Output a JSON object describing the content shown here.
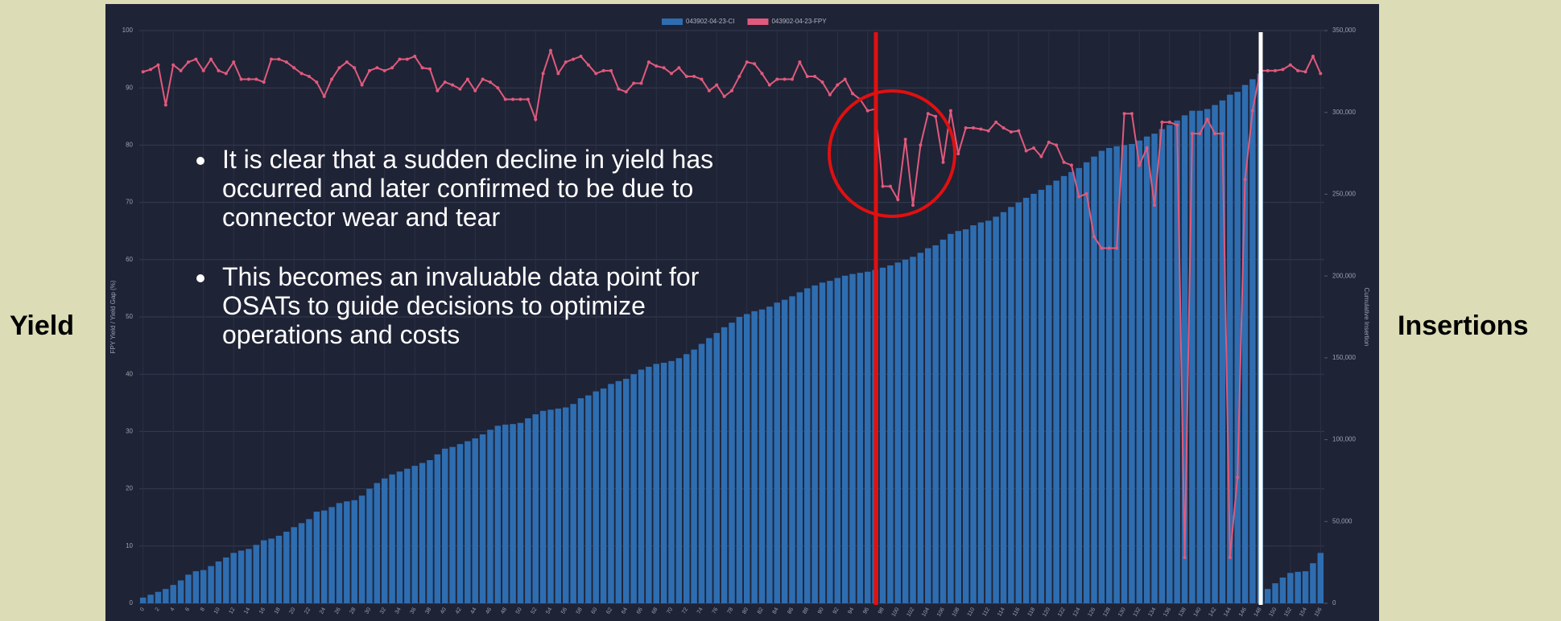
{
  "slide": {
    "left_label": "Yield",
    "right_label": "Insertions",
    "bullets": [
      "It is clear that a sudden decline in yield has occurred and later confirmed to be due to connector wear and tear",
      "This becomes an invaluable data point for OSATs to guide decisions to optimize operations and costs"
    ]
  },
  "chart_data": {
    "type": "bar",
    "ylabel": "FPY Yield / Yield Gap (%)",
    "y2label": "Cumulative Insertion",
    "categories": [
      0,
      null,
      2,
      null,
      4,
      null,
      6,
      null,
      8,
      null,
      10,
      null,
      12,
      null,
      14,
      null,
      16,
      null,
      18,
      null,
      20,
      null,
      22,
      null,
      24,
      null,
      26,
      null,
      28,
      null,
      30,
      null,
      32,
      null,
      34,
      null,
      36,
      null,
      38,
      null,
      40,
      null,
      42,
      null,
      44,
      null,
      46,
      null,
      48,
      null,
      50,
      null,
      52,
      null,
      54,
      null,
      56,
      null,
      58,
      null,
      60,
      null,
      62,
      null,
      64,
      null,
      66,
      null,
      68,
      null,
      70,
      null,
      72,
      null,
      74,
      null,
      76,
      null,
      78,
      null,
      80,
      null,
      82,
      null,
      84,
      null,
      86,
      null,
      88,
      null,
      90,
      null,
      92,
      null,
      94,
      null,
      96,
      null,
      98,
      null,
      100,
      null,
      102,
      null,
      104,
      null,
      106,
      null,
      108,
      null,
      110,
      null,
      112,
      null,
      114,
      null,
      116,
      null,
      118,
      null,
      120,
      null,
      122,
      null,
      124,
      null,
      126,
      null,
      128,
      null,
      130,
      null,
      132,
      null,
      134,
      null,
      136,
      null,
      138,
      null,
      140,
      null,
      142,
      null,
      144,
      null,
      146,
      null,
      148,
      null,
      150,
      null,
      152,
      null,
      154,
      null,
      156
    ],
    "series": [
      {
        "name": "043902-04-23-CI",
        "type": "bar",
        "axis": "y2",
        "color": "#2e6db0",
        "values": [
          3500,
          5250,
          7000,
          8750,
          11200,
          14000,
          17500,
          19600,
          20300,
          22750,
          25550,
          28000,
          30800,
          32200,
          33250,
          35700,
          38500,
          39550,
          41300,
          43750,
          46550,
          49000,
          51450,
          56000,
          56700,
          58800,
          61250,
          62300,
          63000,
          65800,
          70000,
          73500,
          76300,
          78750,
          80500,
          82250,
          84000,
          85750,
          87500,
          91000,
          94500,
          95550,
          97300,
          99050,
          100800,
          103250,
          106050,
          108500,
          109200,
          109550,
          110250,
          113050,
          115500,
          117600,
          118300,
          119000,
          119700,
          121800,
          125300,
          127050,
          129500,
          131250,
          134050,
          135800,
          137200,
          140000,
          142800,
          144550,
          146300,
          147000,
          148050,
          149800,
          152250,
          155050,
          158550,
          162050,
          165200,
          168700,
          171500,
          175000,
          176750,
          178500,
          179550,
          181300,
          183750,
          185500,
          187600,
          190050,
          192500,
          194250,
          196000,
          197050,
          198800,
          200200,
          201250,
          201950,
          202650,
          203700,
          205100,
          206500,
          208250,
          210000,
          211750,
          214200,
          217000,
          218750,
          222250,
          225750,
          227500,
          228550,
          231000,
          232750,
          233800,
          236250,
          239050,
          242200,
          245000,
          247800,
          250250,
          252700,
          255500,
          258300,
          261100,
          263550,
          266000,
          269500,
          273000,
          276500,
          278250,
          279300,
          280000,
          280700,
          282800,
          285250,
          287000,
          289800,
          292250,
          295050,
          298200,
          301000,
          301000,
          302050,
          304500,
          307300,
          310800,
          312550,
          316750,
          320250,
          323750,
          8750,
          12250,
          15750,
          18550,
          19250,
          19600,
          24500,
          30800
        ]
      },
      {
        "name": "043902-04-23-FPY",
        "type": "line",
        "color": "#e05a7c",
        "values": [
          92.8,
          93.2,
          94,
          87,
          94,
          93,
          94.5,
          95,
          93,
          95,
          93,
          92.5,
          94.5,
          91.5,
          91.5,
          91.5,
          91,
          95,
          95,
          94.5,
          93.5,
          92.5,
          92,
          91,
          88.5,
          91.5,
          93.5,
          94.5,
          93.5,
          90.5,
          93,
          93.5,
          93,
          93.5,
          95,
          95,
          95.5,
          93.5,
          93.3,
          89.5,
          91,
          90.5,
          89.8,
          91.5,
          89.5,
          91.5,
          91,
          90,
          88,
          88,
          88,
          88,
          84.5,
          92.5,
          96.5,
          92.5,
          94.5,
          95,
          95.5,
          94,
          92.5,
          93,
          93,
          89.8,
          89.3,
          90.8,
          90.8,
          94.5,
          93.8,
          93.5,
          92.5,
          93.5,
          92,
          92,
          91.5,
          89.5,
          90.5,
          88.5,
          89.5,
          92,
          94.5,
          94.2,
          92.5,
          90.5,
          91.5,
          91.5,
          91.5,
          94.5,
          92,
          92,
          91,
          88.8,
          90.5,
          91.5,
          89,
          88,
          86,
          86.3,
          72.8,
          72.8,
          70.5,
          81,
          69.5,
          80,
          85.5,
          85,
          77,
          86,
          78.5,
          83,
          83,
          82.8,
          82.5,
          84,
          83,
          82.3,
          82.5,
          79,
          79.5,
          78,
          80.5,
          80,
          77,
          76.5,
          71,
          71.5,
          64,
          62,
          62,
          62,
          85.5,
          85.5,
          76.5,
          79.5,
          69.5,
          84,
          84,
          83.5,
          8,
          82,
          82,
          84.5,
          82,
          82,
          8,
          22,
          74,
          86,
          93,
          93,
          93,
          93.2,
          94,
          93,
          92.8,
          95.5,
          92.5
        ]
      }
    ],
    "ylim": [
      0,
      100
    ],
    "yticks": [
      0,
      10,
      20,
      30,
      40,
      50,
      60,
      70,
      80,
      90,
      100
    ],
    "y2lim": [
      0,
      350000
    ],
    "y2ticks": [
      0,
      {
        "value": 50000,
        "label": "50,000"
      },
      {
        "value": 100000,
        "label": "100,000"
      },
      {
        "value": 150000,
        "label": "150,000"
      },
      {
        "value": 200000,
        "label": "200,000"
      },
      {
        "value": 250000,
        "label": "250,000"
      },
      {
        "value": 300000,
        "label": "300,000"
      },
      {
        "value": 350000,
        "label": "350,000"
      }
    ],
    "grid": true
  }
}
